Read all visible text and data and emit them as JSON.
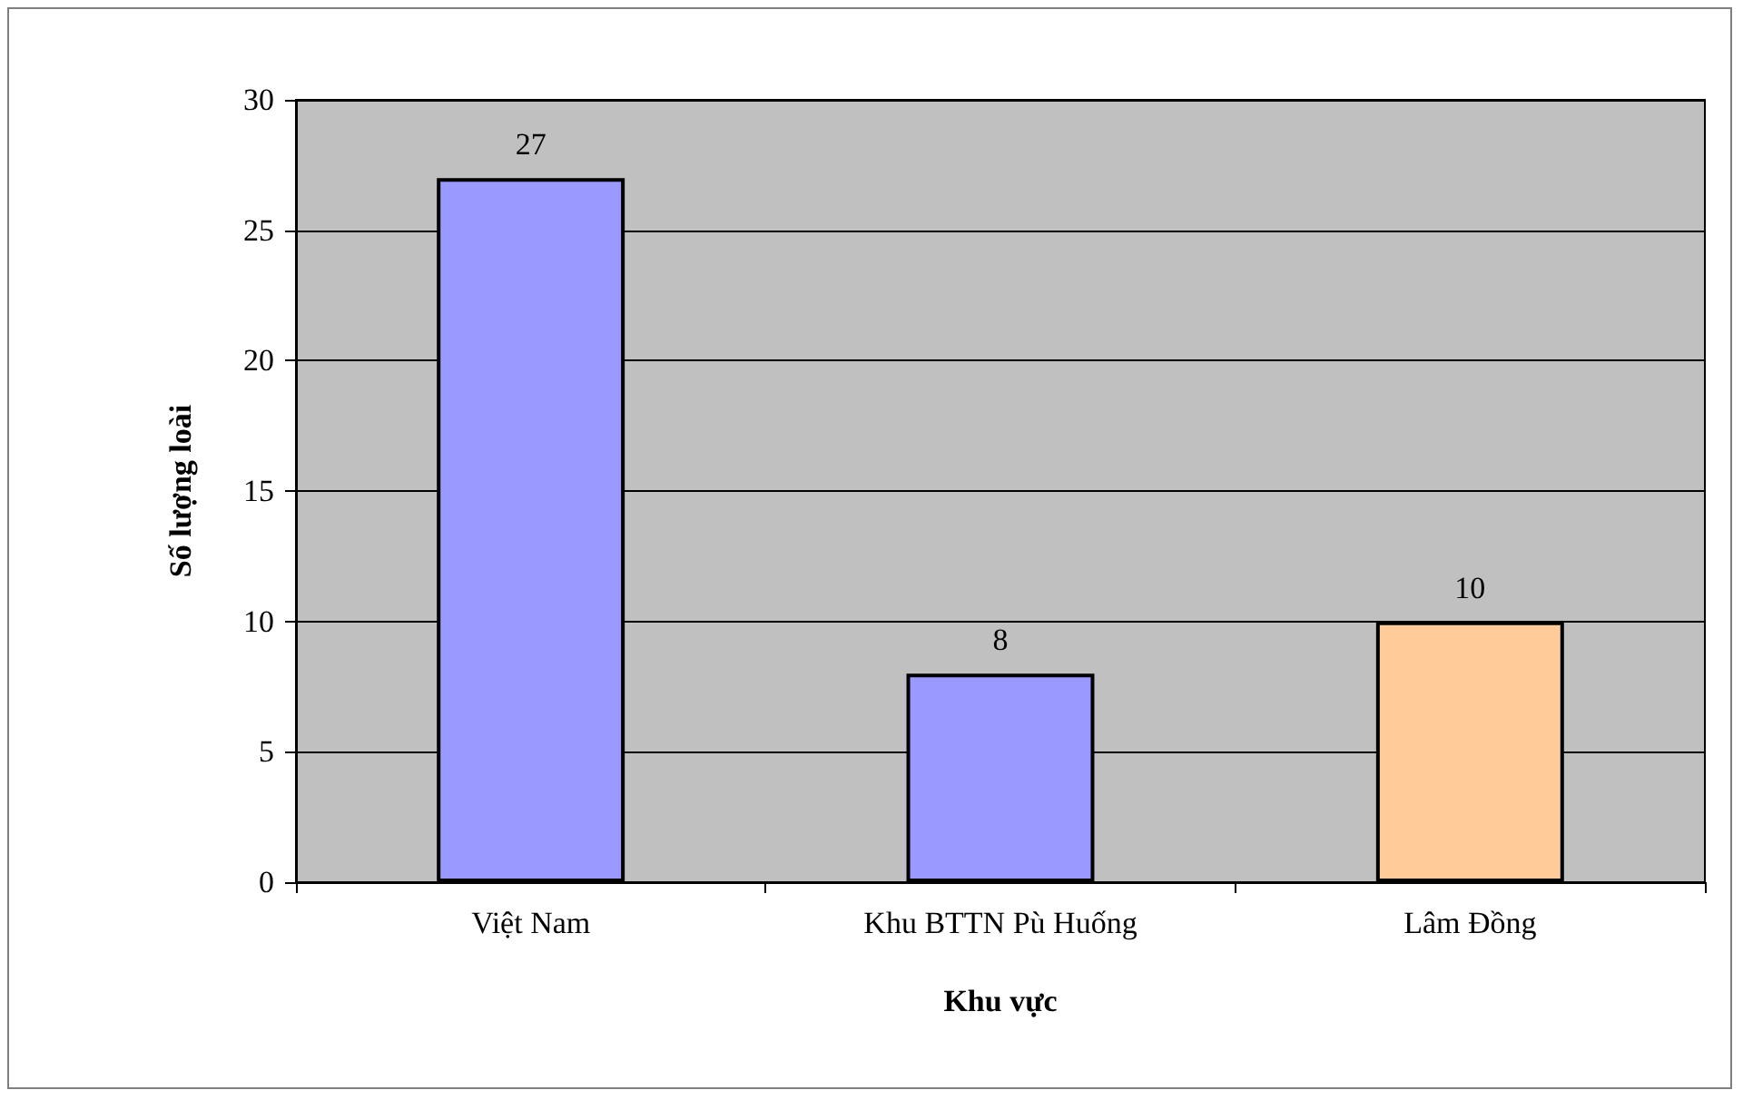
{
  "chart_data": {
    "type": "bar",
    "categories": [
      "Việt Nam",
      "Khu BTTN Pù Huống",
      "Lâm Đồng"
    ],
    "values": [
      27,
      8,
      10
    ],
    "colors": [
      "#9999ff",
      "#9999ff",
      "#ffcc99"
    ],
    "xlabel": "Khu vực",
    "ylabel": "Số lượng loài",
    "ylim": [
      0,
      30
    ],
    "yticks": [
      0,
      5,
      10,
      15,
      20,
      25,
      30
    ],
    "grid": "y",
    "data_labels": true
  }
}
